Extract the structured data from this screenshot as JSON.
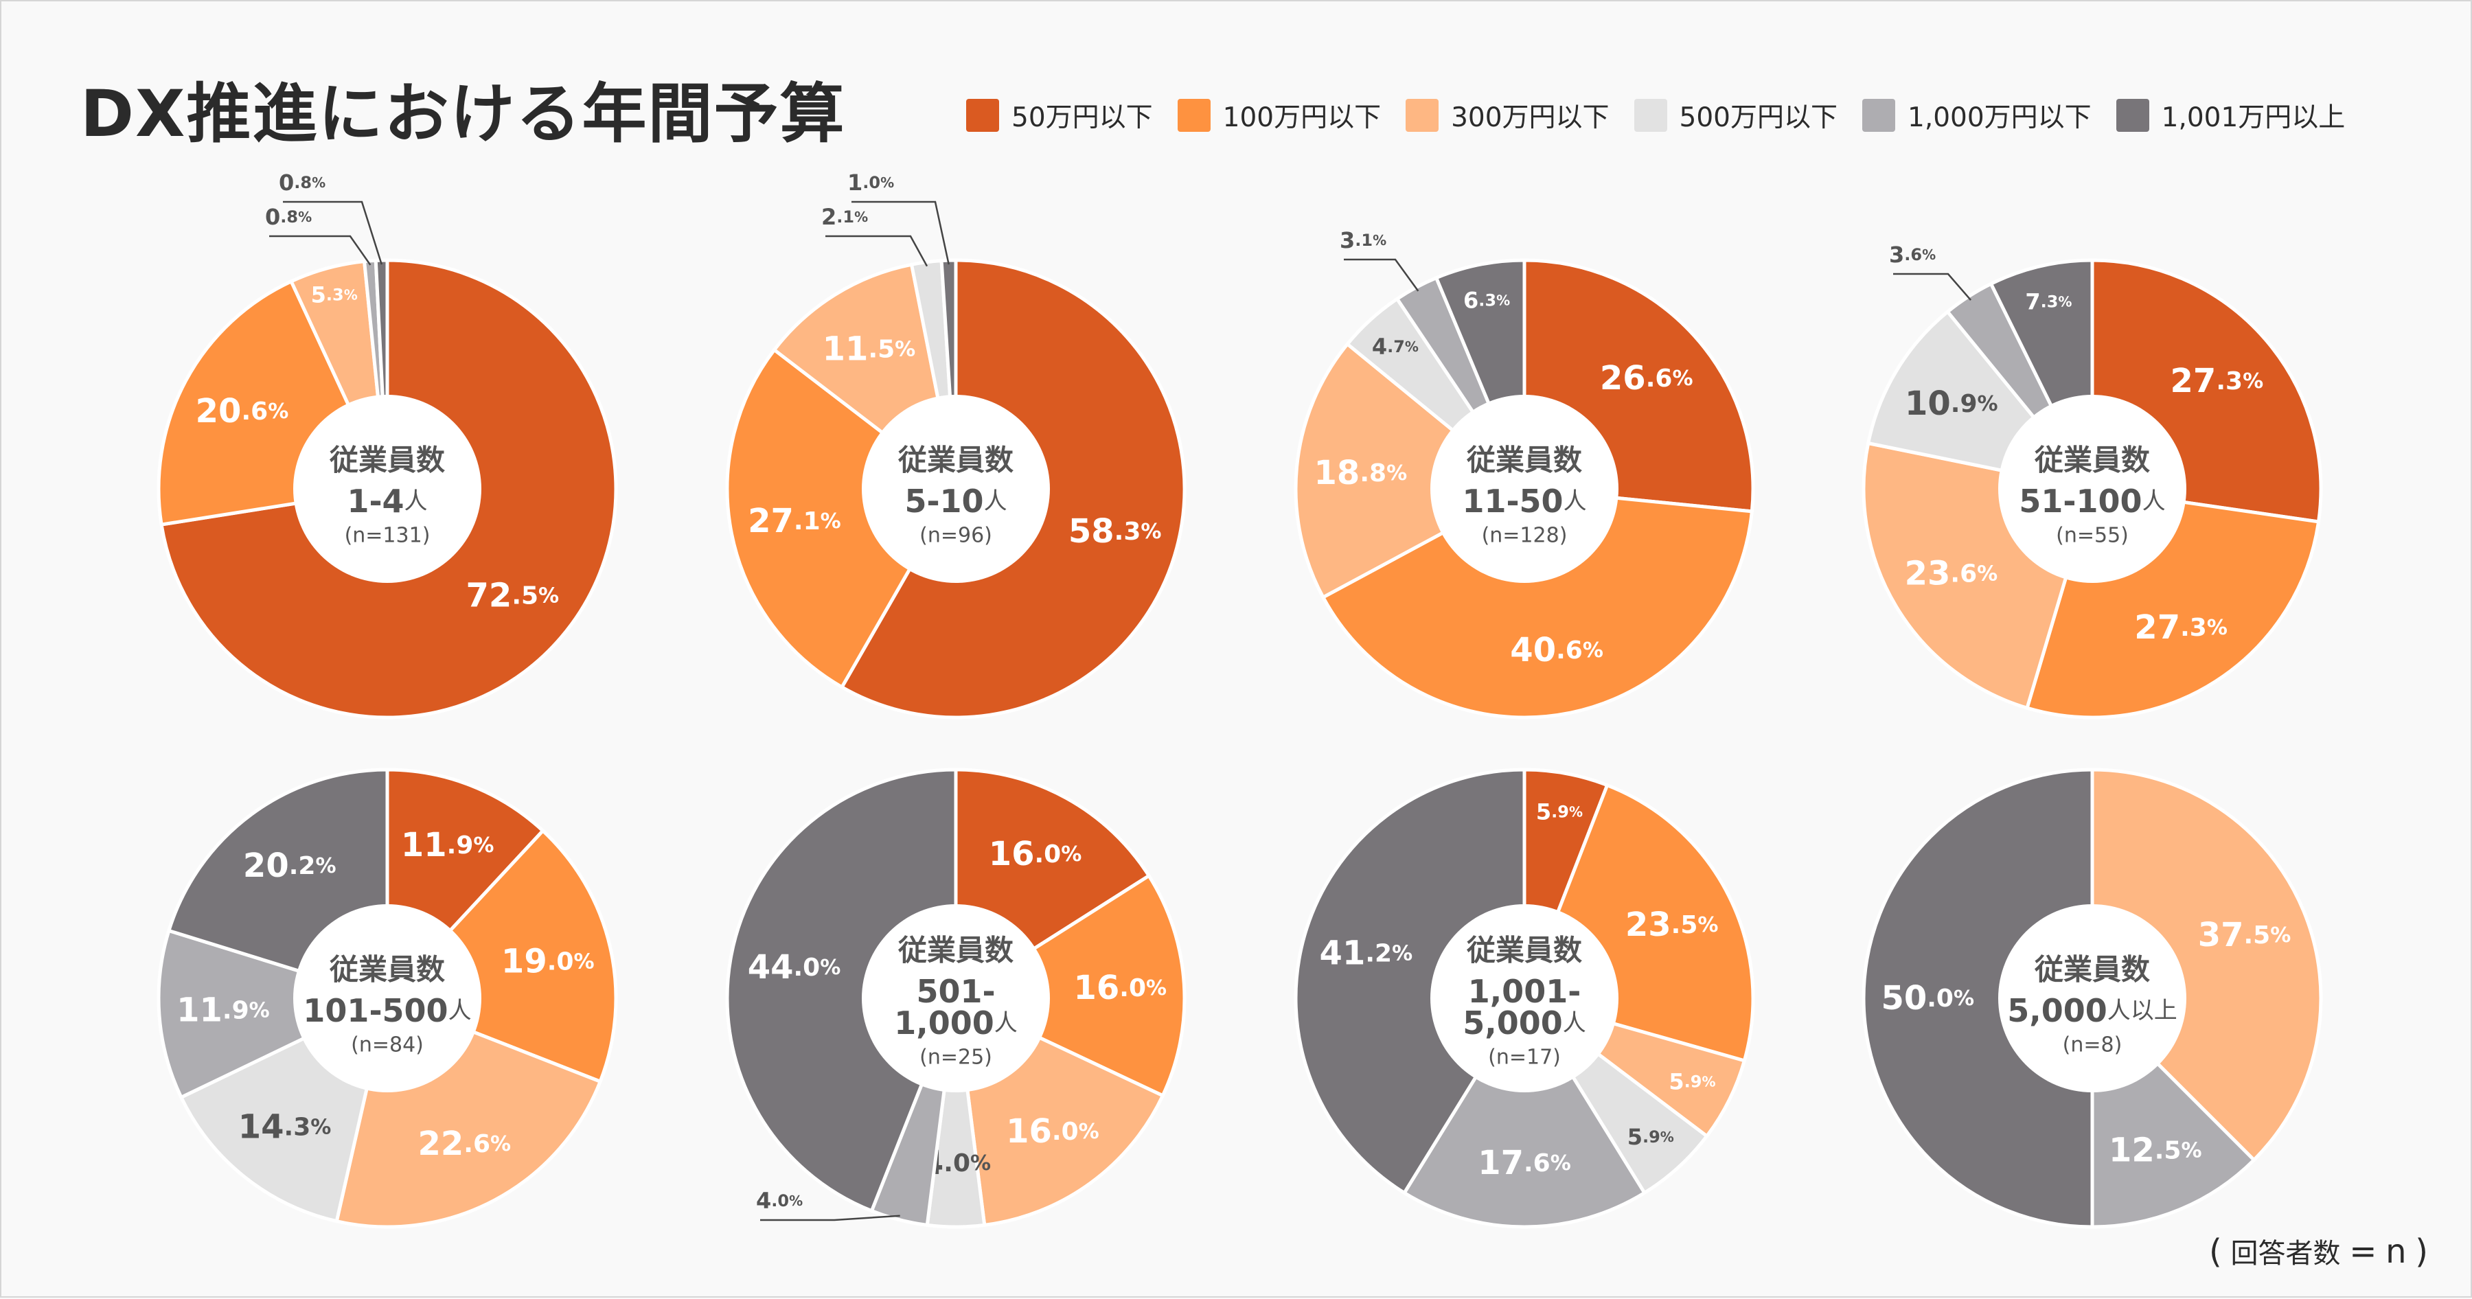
{
  "title": "DX推進における年間予算",
  "note": {
    "open": "(",
    "label": "回答者数",
    "eq": "=",
    "n": "n",
    "close": ")"
  },
  "legend": [
    {
      "label": "50万円以下",
      "color": "#da5a21"
    },
    {
      "label": "100万円以下",
      "color": "#fe9240"
    },
    {
      "label": "300万円以下",
      "color": "#feb783"
    },
    {
      "label": "500万円以下",
      "color": "#e2e2e2"
    },
    {
      "label": "1,000万円以下",
      "color": "#aeadb1"
    },
    {
      "label": "1,001万円以上",
      "color": "#787579"
    }
  ],
  "chart_data": [
    {
      "type": "pie",
      "title": "従業員数",
      "group_label": [
        "1-4人"
      ],
      "n_label": "(n=131)",
      "categories": [
        "50万円以下",
        "100万円以下",
        "300万円以下",
        "500万円以下",
        "1,000万円以下",
        "1,001万円以上"
      ],
      "values": [
        72.5,
        20.6,
        5.3,
        0,
        0.8,
        0.8
      ],
      "labels": [
        "72.5%",
        "20.6%",
        "5.3%",
        "",
        "0.8%",
        "0.8%"
      ]
    },
    {
      "type": "pie",
      "title": "従業員数",
      "group_label": [
        "5-10人"
      ],
      "n_label": "(n=96)",
      "categories": [
        "50万円以下",
        "100万円以下",
        "300万円以下",
        "500万円以下",
        "1,000万円以下",
        "1,001万円以上"
      ],
      "values": [
        58.3,
        27.1,
        11.5,
        2.1,
        0,
        1.0
      ],
      "labels": [
        "58.3%",
        "27.1%",
        "11.5%",
        "2.1%",
        "",
        "1.0%"
      ]
    },
    {
      "type": "pie",
      "title": "従業員数",
      "group_label": [
        "11-50人"
      ],
      "n_label": "(n=128)",
      "categories": [
        "50万円以下",
        "100万円以下",
        "300万円以下",
        "500万円以下",
        "1,000万円以下",
        "1,001万円以上"
      ],
      "values": [
        26.6,
        40.6,
        18.8,
        4.7,
        3.1,
        6.3
      ],
      "labels": [
        "26.6%",
        "40.6%",
        "18.8%",
        "4.7%",
        "3.1%",
        "6.3%"
      ]
    },
    {
      "type": "pie",
      "title": "従業員数",
      "group_label": [
        "51-100人"
      ],
      "n_label": "(n=55)",
      "categories": [
        "50万円以下",
        "100万円以下",
        "300万円以下",
        "500万円以下",
        "1,000万円以下",
        "1,001万円以上"
      ],
      "values": [
        27.3,
        27.3,
        23.6,
        10.9,
        3.6,
        7.3
      ],
      "labels": [
        "27.3%",
        "27.3%",
        "23.6%",
        "10.9%",
        "3.6%",
        "7.3%"
      ]
    },
    {
      "type": "pie",
      "title": "従業員数",
      "group_label": [
        "101-500人"
      ],
      "n_label": "(n=84)",
      "categories": [
        "50万円以下",
        "100万円以下",
        "300万円以下",
        "500万円以下",
        "1,000万円以下",
        "1,001万円以上"
      ],
      "values": [
        11.9,
        19.0,
        22.6,
        14.3,
        11.9,
        20.2
      ],
      "labels": [
        "11.9%",
        "19.0%",
        "22.6%",
        "14.3%",
        "11.9%",
        "20.2%"
      ]
    },
    {
      "type": "pie",
      "title": "従業員数",
      "group_label": [
        "501-",
        "1,000人"
      ],
      "n_label": "(n=25)",
      "categories": [
        "50万円以下",
        "100万円以下",
        "300万円以下",
        "500万円以下",
        "1,000万円以下",
        "1,001万円以上"
      ],
      "values": [
        16.0,
        16.0,
        16.0,
        4.0,
        4.0,
        44.0
      ],
      "labels": [
        "16.0%",
        "16.0%",
        "16.0%",
        "4.0%",
        "4.0%",
        "44.0%"
      ]
    },
    {
      "type": "pie",
      "title": "従業員数",
      "group_label": [
        "1,001-",
        "5,000人"
      ],
      "n_label": "(n=17)",
      "categories": [
        "50万円以下",
        "100万円以下",
        "300万円以下",
        "500万円以下",
        "1,000万円以下",
        "1,001万円以上"
      ],
      "values": [
        5.9,
        23.5,
        5.9,
        5.9,
        17.6,
        41.2
      ],
      "labels": [
        "5.9%",
        "23.5%",
        "5.9%",
        "5.9%",
        "17.6%",
        "41.2%"
      ]
    },
    {
      "type": "pie",
      "title": "従業員数",
      "group_label": [
        "5,000人以上"
      ],
      "n_label": "(n=8)",
      "categories": [
        "50万円以下",
        "100万円以下",
        "300万円以下",
        "500万円以下",
        "1,000万円以下",
        "1,001万円以上"
      ],
      "values": [
        0,
        0,
        37.5,
        0,
        12.5,
        50.0
      ],
      "labels": [
        "",
        "",
        "37.5%",
        "",
        "12.5%",
        "50.0%"
      ]
    }
  ]
}
